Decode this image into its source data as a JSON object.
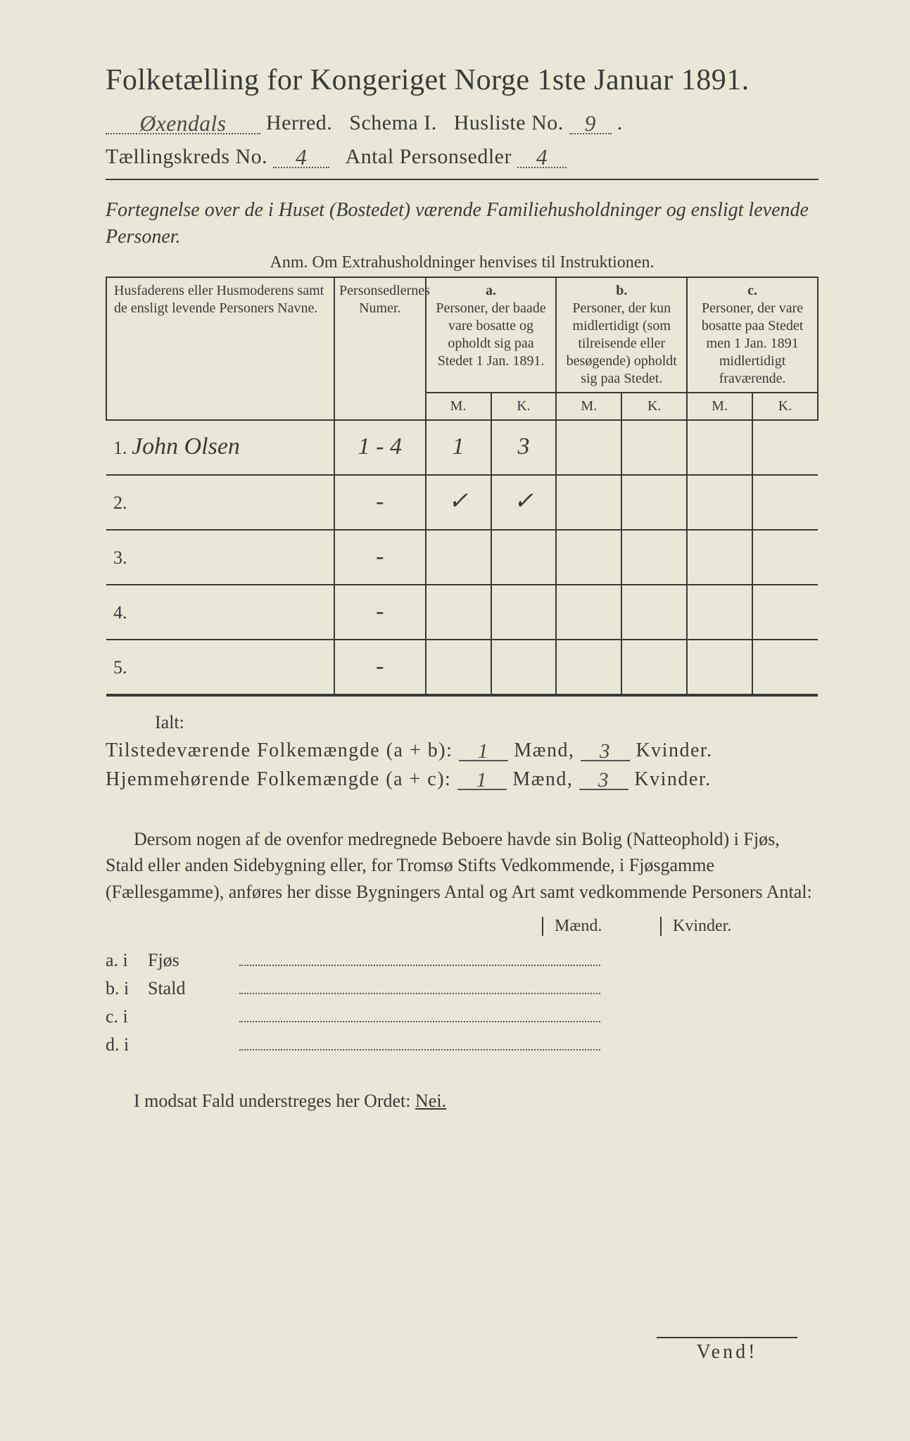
{
  "header": {
    "title": "Folketælling for Kongeriget Norge 1ste Januar 1891.",
    "herred_value": "Øxendals",
    "herred_label": "Herred.",
    "schema_label": "Schema I.",
    "husliste_label": "Husliste No.",
    "husliste_value": "9",
    "kreds_label": "Tællingskreds No.",
    "kreds_value": "4",
    "antal_label": "Antal Personsedler",
    "antal_value": "4"
  },
  "intro": {
    "italic": "Fortegnelse over de i Huset (Bostedet) værende Familiehusholdninger og ensligt levende Personer.",
    "anm": "Anm. Om Extrahusholdninger henvises til Instruktionen."
  },
  "table": {
    "col1": "Husfaderens eller Husmoderens samt de ensligt levende Personers Navne.",
    "col2": "Personsedlernes Numer.",
    "colA_head": "a.",
    "colA": "Personer, der baade vare bosatte og opholdt sig paa Stedet 1 Jan. 1891.",
    "colB_head": "b.",
    "colB": "Personer, der kun midlertidigt (som tilreisende eller besøgende) opholdt sig paa Stedet.",
    "colC_head": "c.",
    "colC": "Personer, der vare bosatte paa Stedet men 1 Jan. 1891 midlertidigt fraværende.",
    "mk_m": "M.",
    "mk_k": "K.",
    "rows": [
      {
        "num": "1.",
        "name": "John Olsen",
        "sedler": "1 - 4",
        "a_m": "1",
        "a_k": "3",
        "b_m": "",
        "b_k": "",
        "c_m": "",
        "c_k": ""
      },
      {
        "num": "2.",
        "name": "",
        "sedler": "-",
        "a_m": "✓",
        "a_k": "✓",
        "b_m": "",
        "b_k": "",
        "c_m": "",
        "c_k": ""
      },
      {
        "num": "3.",
        "name": "",
        "sedler": "-",
        "a_m": "",
        "a_k": "",
        "b_m": "",
        "b_k": "",
        "c_m": "",
        "c_k": ""
      },
      {
        "num": "4.",
        "name": "",
        "sedler": "-",
        "a_m": "",
        "a_k": "",
        "b_m": "",
        "b_k": "",
        "c_m": "",
        "c_k": ""
      },
      {
        "num": "5.",
        "name": "",
        "sedler": "-",
        "a_m": "",
        "a_k": "",
        "b_m": "",
        "b_k": "",
        "c_m": "",
        "c_k": ""
      }
    ]
  },
  "totals": {
    "ialt": "Ialt:",
    "line1_label": "Tilstedeværende Folkemængde (a + b):",
    "line2_label": "Hjemmehørende Folkemængde (a + c):",
    "maend": "Mænd,",
    "kvinder": "Kvinder.",
    "l1_m": "1",
    "l1_k": "3",
    "l2_m": "1",
    "l2_k": "3"
  },
  "para2": "Dersom nogen af de ovenfor medregnede Beboere havde sin Bolig (Natteophold) i Fjøs, Stald eller anden Sidebygning eller, for Tromsø Stifts Vedkommende, i Fjøsgamme (Fællesgamme), anføres her disse Bygningers Antal og Art samt vedkommende Personers Antal:",
  "mk": {
    "m": "Mænd.",
    "k": "Kvinder."
  },
  "abcd": {
    "a": "a.  i",
    "a_word": "Fjøs",
    "b": "b.  i",
    "b_word": "Stald",
    "c": "c.  i",
    "c_word": "",
    "d": "d.  i",
    "d_word": ""
  },
  "modsat": {
    "text": "I modsat Fald understreges her Ordet:",
    "nei": "Nei."
  },
  "vend": "Vend!",
  "colors": {
    "paper": "#e9e7d8",
    "ink": "#3a3a33",
    "hw": "#4a4a42"
  }
}
